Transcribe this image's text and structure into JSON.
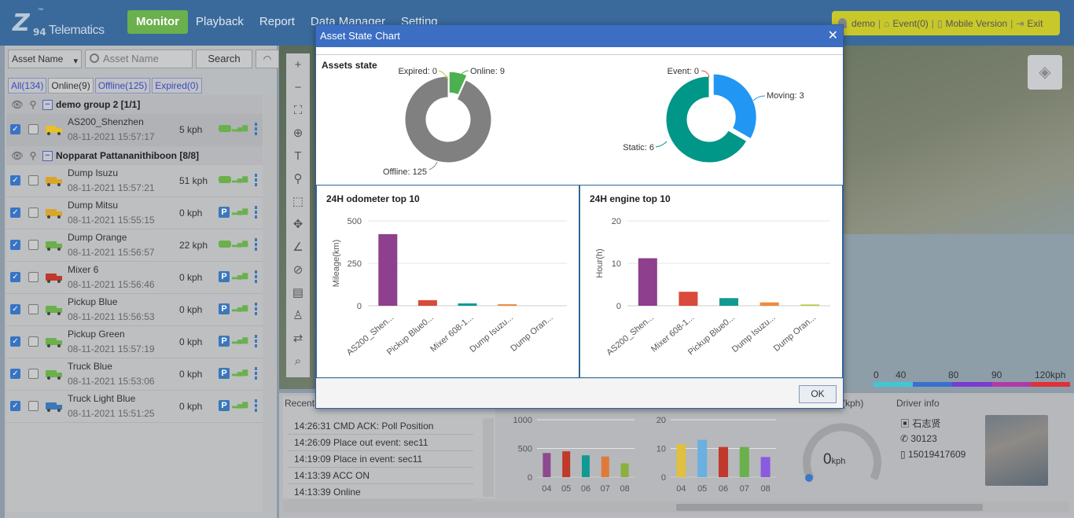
{
  "app": {
    "logo_mark": "Z",
    "logo_num": "94",
    "logo_text": "Telematics",
    "logo_tm": "™"
  },
  "nav": [
    "Monitor",
    "Playback",
    "Report",
    "Data Manager",
    "Setting"
  ],
  "userbar": {
    "user": "demo",
    "event": "Event(0)",
    "mobile": "Mobile Version",
    "exit": "Exit"
  },
  "search": {
    "select": "Asset Name",
    "placeholder": "Asset Name",
    "button": "Search"
  },
  "tabs": [
    "All(134)",
    "Online(9)",
    "Offline(125)",
    "Expired(0)"
  ],
  "groups": [
    {
      "name": "demo group 2 [1/1]",
      "assets": [
        {
          "name": "AS200_Shenzhen",
          "time": "08-11-2021 15:57:17",
          "speed": "5 kph",
          "status": "moving",
          "vehicle_color": "#e8c02a"
        }
      ]
    },
    {
      "name": "Nopparat Pattananithiboon [8/8]",
      "assets": [
        {
          "name": "Dump Isuzu",
          "time": "08-11-2021 15:57:21",
          "speed": "51 kph",
          "status": "moving",
          "vehicle_color": "#d9a52b"
        },
        {
          "name": "Dump Mitsu",
          "time": "08-11-2021 15:55:15",
          "speed": "0 kph",
          "status": "parked",
          "vehicle_color": "#d9a52b"
        },
        {
          "name": "Dump Orange",
          "time": "08-11-2021 15:56:57",
          "speed": "22 kph",
          "status": "moving",
          "vehicle_color": "#6ab04c"
        },
        {
          "name": "Mixer 6",
          "time": "08-11-2021 15:56:46",
          "speed": "0 kph",
          "status": "parked",
          "vehicle_color": "#c0392b"
        },
        {
          "name": "Pickup Blue",
          "time": "08-11-2021 15:56:53",
          "speed": "0 kph",
          "status": "parked",
          "vehicle_color": "#6ab04c"
        },
        {
          "name": "Pickup Green",
          "time": "08-11-2021 15:57:19",
          "speed": "0 kph",
          "status": "parked",
          "vehicle_color": "#6ab04c"
        },
        {
          "name": "Truck Blue",
          "time": "08-11-2021 15:53:06",
          "speed": "0 kph",
          "status": "parked",
          "vehicle_color": "#6ab04c"
        },
        {
          "name": "Truck Light Blue",
          "time": "08-11-2021 15:51:25",
          "speed": "0 kph",
          "status": "parked",
          "vehicle_color": "#3a78b8"
        }
      ]
    }
  ],
  "speed_legend": {
    "labels": [
      "0",
      "40",
      "80",
      "90",
      "120kph"
    ],
    "colors": [
      "#41c6d6",
      "#3a6fd0",
      "#7a3bd0",
      "#b03aa8",
      "#e0303a"
    ]
  },
  "recent": {
    "title": "Recent",
    "items": [
      "14:26:31 CMD ACK: Poll Position",
      "14:26:09 Place out event: sec11",
      "14:19:09 Place in event: sec11",
      "14:13:39 ACC ON",
      "14:13:39 Online"
    ]
  },
  "speedometer": {
    "label": "r(kph)",
    "value": "0",
    "unit": "kph"
  },
  "driver": {
    "title": "Driver info",
    "name": "石志贤",
    "id": "30123",
    "phone": "15019417609"
  },
  "dialog": {
    "title": "Asset State Chart",
    "ok": "OK",
    "assets_state_title": "Assets state",
    "odometer_title": "24H odometer top 10",
    "engine_title": "24H engine top 10"
  },
  "chart_data": [
    {
      "type": "pie",
      "title": "Assets state",
      "slices": [
        {
          "label": "Expired",
          "value": 0,
          "color": "#b5cc3a"
        },
        {
          "label": "Online",
          "value": 9,
          "color": "#4caf50"
        },
        {
          "label": "Offline",
          "value": 125,
          "color": "#808080"
        }
      ],
      "label_texts": [
        "Expired: 0",
        "Online: 9",
        "Offline: 125"
      ]
    },
    {
      "type": "pie",
      "slices": [
        {
          "label": "Event",
          "value": 0,
          "color": "#e05050"
        },
        {
          "label": "Moving",
          "value": 3,
          "color": "#2196f3"
        },
        {
          "label": "Static",
          "value": 6,
          "color": "#009688"
        }
      ],
      "label_texts": [
        "Event: 0",
        "Moving: 3",
        "Static: 6"
      ]
    },
    {
      "type": "bar",
      "title": "24H odometer top 10",
      "ylabel": "Mileage(km)",
      "ylim": [
        0,
        500
      ],
      "yticks": [
        0,
        250,
        500
      ],
      "categories": [
        "AS200_Shen...",
        "Pickup Blue0...",
        "Mixer 608-1...",
        "Dump Isuzu...",
        "Dump Oran..."
      ],
      "values": [
        422,
        33,
        14,
        9,
        0
      ],
      "colors": [
        "#8e3f8e",
        "#d94a3a",
        "#0f9a94",
        "#ef8a3a",
        "#8ab040"
      ]
    },
    {
      "type": "bar",
      "title": "24H engine top 10",
      "ylabel": "Hour(h)",
      "ylim": [
        0,
        20
      ],
      "yticks": [
        0,
        10,
        20
      ],
      "categories": [
        "AS200_Shen...",
        "Mixer 608-1...",
        "Pickup Blue0...",
        "Dump Isuzu...",
        "Dump Oran..."
      ],
      "values": [
        11.2,
        3.3,
        1.8,
        0.8,
        0.3
      ],
      "colors": [
        "#8e3f8e",
        "#d94a3a",
        "#0f9a94",
        "#ef8a3a",
        "#b8c83a"
      ]
    },
    {
      "type": "bar",
      "ylim": [
        0,
        1000
      ],
      "yticks": [
        0,
        500,
        1000
      ],
      "categories": [
        "04",
        "05",
        "06",
        "07",
        "08"
      ],
      "values": [
        420,
        450,
        380,
        360,
        240
      ],
      "colors": [
        "#8e4a8e",
        "#c0392b",
        "#0f9a94",
        "#e07a3a",
        "#8ab040"
      ]
    },
    {
      "type": "bar",
      "ylim": [
        0,
        20
      ],
      "yticks": [
        0,
        10,
        20
      ],
      "categories": [
        "04",
        "05",
        "06",
        "07",
        "08"
      ],
      "values": [
        11.5,
        13,
        10.5,
        10.5,
        7
      ],
      "colors": [
        "#e0c040",
        "#6ab0e0",
        "#c0392b",
        "#6ab04c",
        "#8a5ae0"
      ]
    }
  ]
}
